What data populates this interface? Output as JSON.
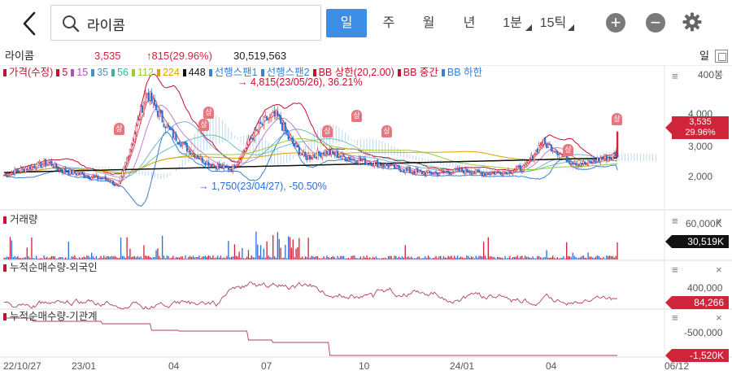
{
  "header": {
    "search_value": "라이콤",
    "tabs": [
      {
        "label": "일",
        "active": true
      },
      {
        "label": "주",
        "active": false
      },
      {
        "label": "월",
        "active": false
      },
      {
        "label": "년",
        "active": false
      }
    ],
    "minute_dropdown": "1분",
    "tick_dropdown": "15틱",
    "icons": [
      "back-arrow-icon",
      "search-icon",
      "zoom-in-icon",
      "zoom-out-icon",
      "gear-icon"
    ]
  },
  "stock": {
    "name": "라이콤",
    "price": "3,535",
    "change": "↑815(29.96%)",
    "volume": "30,519,563",
    "period_indicator": "일"
  },
  "legend": [
    {
      "label": "가격(수정)",
      "color": "#c8102e"
    },
    {
      "label": "5",
      "color": "#c8102e"
    },
    {
      "label": "15",
      "color": "#b04fc0"
    },
    {
      "label": "35",
      "color": "#4a90c2"
    },
    {
      "label": "56",
      "color": "#3bb39b"
    },
    {
      "label": "112",
      "color": "#9acd32"
    },
    {
      "label": "224",
      "color": "#e0a000"
    },
    {
      "label": "448",
      "color": "#111111"
    },
    {
      "label": "선행스팬1",
      "color": "#3a7fd0"
    },
    {
      "label": "선행스팬2",
      "color": "#3a7fd0"
    },
    {
      "label": "BB 상한(20,2.00)",
      "color": "#c8102e"
    },
    {
      "label": "BB 중간",
      "color": "#c8102e"
    },
    {
      "label": "BB 하한",
      "color": "#3a7fd0"
    }
  ],
  "annotations": {
    "high": "→ 4,815(23/05/26), 36.21%",
    "low": "→ 1,750(23/04/27), -50.50%",
    "limit_up_badge": "상"
  },
  "price_axis": {
    "top_label": "400봉",
    "ticks": [
      "4,000",
      "3,000",
      "2,000"
    ],
    "current_price": "3,535",
    "current_change": "29.96%"
  },
  "volume_pane": {
    "title": "거래량",
    "tick": "60,000K",
    "current": "30,519K"
  },
  "foreign_pane": {
    "title": "누적순매수량-외국인",
    "tick": "400,000",
    "current": "84,266"
  },
  "institution_pane": {
    "title": "누적순매수량-기관계",
    "tick": "-500,000",
    "current": "-1,520K"
  },
  "x_axis": [
    "22/10/27",
    "23/01",
    "04",
    "07",
    "10",
    "24/01",
    "04",
    "06/12"
  ],
  "colors": {
    "accent": "#3d8fe6",
    "up": "#d0243a",
    "down": "#2a6fd6"
  }
}
